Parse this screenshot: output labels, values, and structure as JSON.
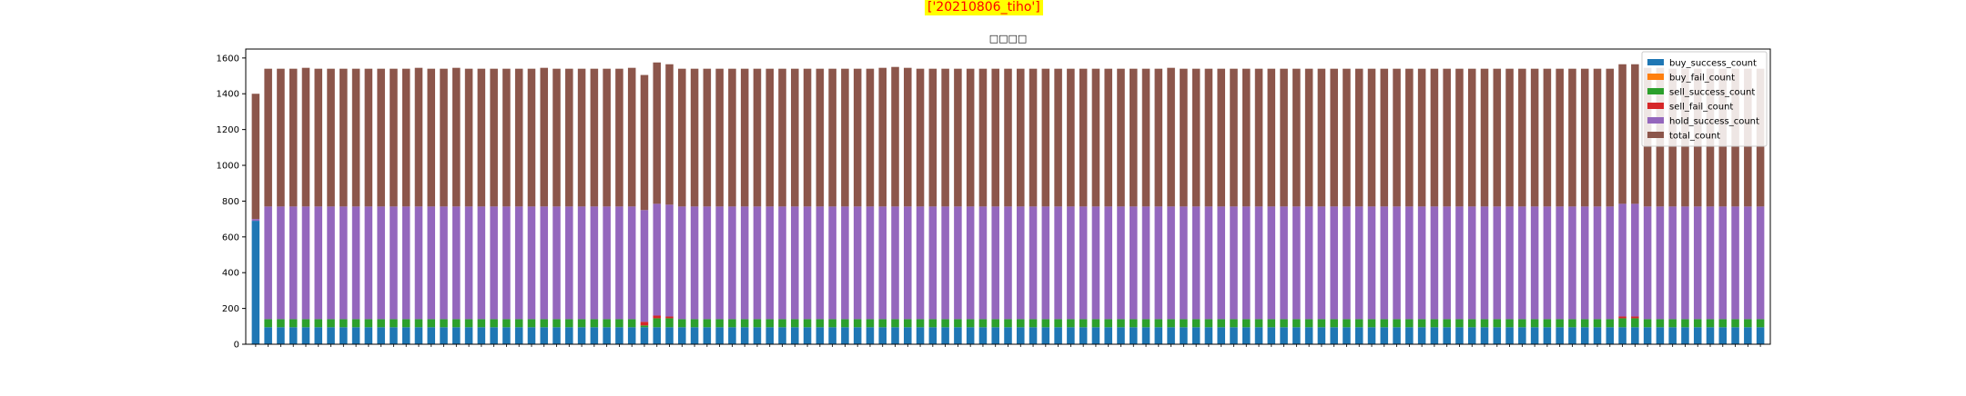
{
  "figure": {
    "suptitle": "['20210806_tiho']",
    "suptitle_bg": "#ffff00",
    "suptitle_color": "#ff0000"
  },
  "chart_data": {
    "type": "bar",
    "stacked": true,
    "title": "□□□□",
    "xlabel": "",
    "ylabel": "",
    "ylim": [
      0,
      1650
    ],
    "yticks": [
      0,
      200,
      400,
      600,
      800,
      1000,
      1200,
      1400,
      1600
    ],
    "legend_position": "top-right",
    "grid": false,
    "category_count": 121,
    "series": [
      {
        "name": "buy_success_count",
        "color": "#1f77b4",
        "values": [
          690,
          95,
          95,
          95,
          95,
          95,
          95,
          95,
          95,
          95,
          95,
          95,
          95,
          95,
          95,
          95,
          95,
          95,
          95,
          95,
          95,
          95,
          95,
          95,
          95,
          95,
          95,
          95,
          95,
          95,
          95,
          95,
          95,
          95,
          95,
          95,
          95,
          95,
          95,
          95,
          95,
          95,
          95,
          95,
          95,
          95,
          95,
          95,
          95,
          95,
          95,
          95,
          95,
          95,
          95,
          95,
          95,
          95,
          95,
          95,
          95,
          95,
          95,
          95,
          95,
          95,
          95,
          95,
          95,
          95,
          95,
          95,
          95,
          95,
          95,
          95,
          95,
          95,
          95,
          95,
          95,
          95,
          95,
          95,
          95,
          95,
          95,
          95,
          95,
          95,
          95,
          95,
          95,
          95,
          95,
          95,
          95,
          95,
          95,
          95,
          95,
          95,
          95,
          95,
          95,
          95,
          95,
          95,
          95,
          95,
          95,
          95,
          95,
          95,
          95,
          95,
          95,
          95,
          95,
          95,
          95
        ]
      },
      {
        "name": "buy_fail_count",
        "color": "#ff7f0e",
        "values": [
          0,
          0,
          0,
          0,
          0,
          0,
          0,
          0,
          0,
          0,
          0,
          0,
          0,
          0,
          0,
          0,
          0,
          0,
          0,
          0,
          0,
          0,
          0,
          0,
          0,
          0,
          0,
          0,
          0,
          0,
          0,
          0,
          0,
          0,
          0,
          0,
          0,
          0,
          0,
          0,
          0,
          0,
          0,
          0,
          0,
          0,
          0,
          0,
          0,
          0,
          0,
          0,
          0,
          0,
          0,
          0,
          0,
          0,
          0,
          0,
          0,
          0,
          0,
          0,
          0,
          0,
          0,
          0,
          0,
          0,
          0,
          0,
          0,
          0,
          0,
          0,
          0,
          0,
          0,
          0,
          0,
          0,
          0,
          0,
          0,
          0,
          0,
          0,
          0,
          0,
          0,
          0,
          0,
          0,
          0,
          0,
          0,
          0,
          0,
          0,
          0,
          0,
          0,
          0,
          0,
          0,
          0,
          0,
          0,
          0,
          0,
          0,
          0,
          0,
          0,
          0,
          0,
          0,
          0,
          0,
          0
        ]
      },
      {
        "name": "sell_success_count",
        "color": "#2ca02c",
        "values": [
          0,
          45,
          45,
          45,
          45,
          45,
          45,
          45,
          45,
          45,
          45,
          45,
          45,
          45,
          45,
          45,
          45,
          45,
          45,
          45,
          45,
          45,
          45,
          45,
          45,
          45,
          45,
          45,
          45,
          45,
          45,
          10,
          50,
          50,
          45,
          45,
          45,
          45,
          45,
          45,
          45,
          45,
          45,
          45,
          45,
          45,
          45,
          45,
          45,
          45,
          45,
          45,
          45,
          45,
          45,
          45,
          45,
          45,
          45,
          45,
          45,
          45,
          45,
          45,
          45,
          45,
          45,
          45,
          45,
          45,
          45,
          45,
          45,
          45,
          45,
          45,
          45,
          45,
          45,
          45,
          45,
          45,
          45,
          45,
          45,
          45,
          45,
          45,
          45,
          45,
          45,
          45,
          45,
          45,
          45,
          45,
          45,
          45,
          45,
          45,
          45,
          45,
          45,
          45,
          45,
          45,
          45,
          45,
          45,
          50,
          50,
          45,
          45,
          45,
          45,
          45,
          45,
          45,
          45,
          45,
          45
        ]
      },
      {
        "name": "sell_fail_count",
        "color": "#d62728",
        "values": [
          0,
          0,
          0,
          0,
          0,
          0,
          0,
          0,
          0,
          0,
          0,
          0,
          0,
          0,
          0,
          0,
          0,
          0,
          0,
          0,
          0,
          0,
          0,
          0,
          0,
          0,
          0,
          0,
          0,
          0,
          0,
          20,
          15,
          10,
          0,
          0,
          0,
          0,
          0,
          0,
          0,
          0,
          0,
          0,
          0,
          0,
          0,
          0,
          0,
          0,
          0,
          0,
          0,
          0,
          0,
          0,
          0,
          0,
          0,
          0,
          0,
          0,
          0,
          0,
          0,
          0,
          0,
          0,
          0,
          0,
          0,
          0,
          0,
          0,
          0,
          0,
          0,
          0,
          0,
          0,
          0,
          0,
          0,
          0,
          0,
          0,
          0,
          0,
          0,
          0,
          0,
          0,
          0,
          0,
          0,
          0,
          0,
          0,
          0,
          0,
          0,
          0,
          0,
          0,
          0,
          0,
          0,
          0,
          0,
          10,
          10,
          0,
          0,
          0,
          0,
          0,
          0,
          0,
          0,
          0,
          0
        ]
      },
      {
        "name": "hold_success_count",
        "color": "#9467bd",
        "values": [
          10,
          630,
          630,
          630,
          630,
          630,
          630,
          630,
          630,
          630,
          630,
          630,
          630,
          630,
          630,
          630,
          630,
          630,
          630,
          630,
          630,
          630,
          630,
          630,
          630,
          630,
          630,
          630,
          630,
          630,
          630,
          625,
          625,
          625,
          630,
          630,
          630,
          630,
          630,
          630,
          630,
          630,
          630,
          630,
          630,
          630,
          630,
          630,
          630,
          630,
          630,
          630,
          630,
          630,
          630,
          630,
          630,
          630,
          630,
          630,
          630,
          630,
          630,
          630,
          630,
          630,
          630,
          630,
          630,
          630,
          630,
          630,
          630,
          630,
          630,
          630,
          630,
          630,
          630,
          630,
          630,
          630,
          630,
          630,
          630,
          630,
          630,
          630,
          630,
          630,
          630,
          630,
          630,
          630,
          630,
          630,
          630,
          630,
          630,
          630,
          630,
          630,
          630,
          630,
          630,
          630,
          630,
          630,
          630,
          630,
          630,
          630,
          630,
          630,
          630,
          630,
          630,
          630,
          630,
          630,
          630
        ]
      },
      {
        "name": "total_count",
        "color": "#8c564b",
        "values": [
          700,
          770,
          770,
          770,
          775,
          770,
          770,
          770,
          770,
          770,
          770,
          770,
          770,
          775,
          770,
          770,
          775,
          770,
          770,
          770,
          770,
          770,
          770,
          775,
          770,
          770,
          770,
          770,
          770,
          770,
          775,
          755,
          790,
          785,
          770,
          770,
          770,
          770,
          770,
          770,
          770,
          770,
          770,
          770,
          770,
          770,
          770,
          770,
          770,
          770,
          775,
          780,
          775,
          770,
          770,
          770,
          770,
          770,
          770,
          770,
          770,
          770,
          770,
          770,
          770,
          770,
          770,
          770,
          770,
          770,
          770,
          770,
          770,
          775,
          770,
          770,
          770,
          770,
          770,
          770,
          770,
          770,
          770,
          770,
          770,
          770,
          770,
          770,
          770,
          770,
          770,
          770,
          770,
          770,
          770,
          770,
          770,
          770,
          770,
          770,
          770,
          770,
          770,
          770,
          770,
          770,
          770,
          770,
          770,
          780,
          780,
          775,
          775,
          770,
          770,
          770,
          770,
          770,
          770,
          770,
          770
        ]
      }
    ]
  }
}
